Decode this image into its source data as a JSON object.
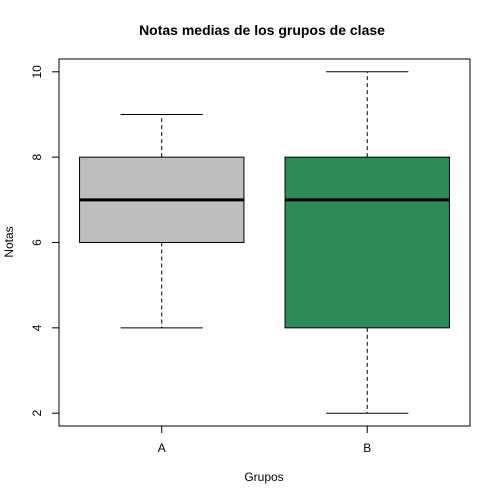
{
  "chart_data": {
    "type": "boxplot",
    "title": "Notas medias de los grupos de clase",
    "xlabel": "Grupos",
    "ylabel": "Notas",
    "ylim": [
      1.7,
      10.3
    ],
    "yticks": [
      2,
      4,
      6,
      8,
      10
    ],
    "grid": false,
    "legend": "none",
    "groups": [
      {
        "category": "A",
        "min": 4,
        "q1": 6,
        "median": 7,
        "q3": 8,
        "max": 9,
        "color": "#bebebe"
      },
      {
        "category": "B",
        "min": 2,
        "q1": 4,
        "median": 7,
        "q3": 8,
        "max": 10,
        "color": "#2e8b57"
      }
    ]
  }
}
